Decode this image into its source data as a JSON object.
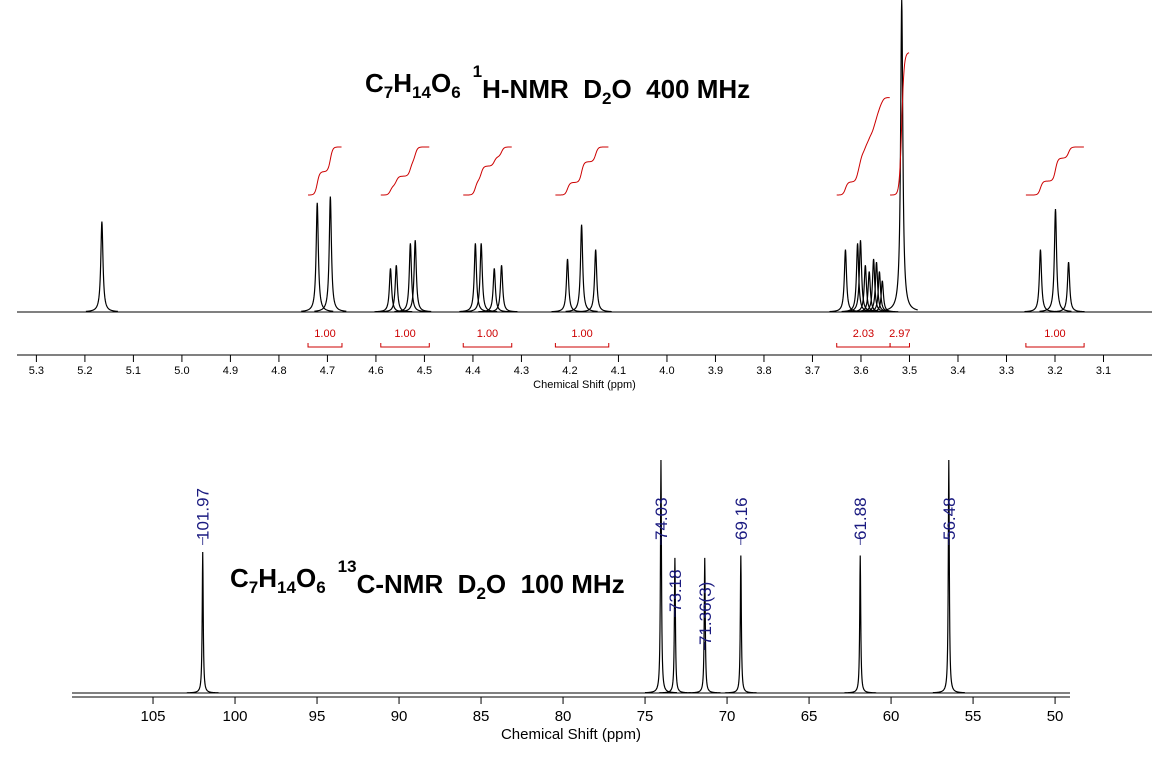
{
  "chart_data": [
    {
      "type": "nmr",
      "title": [
        {
          "text": "C"
        },
        {
          "text": "7",
          "shift": "sub"
        },
        {
          "text": "H"
        },
        {
          "text": "14",
          "shift": "sub"
        },
        {
          "text": "O"
        },
        {
          "text": "6",
          "shift": "sub"
        },
        {
          "text": "1",
          "shift": "sup"
        },
        {
          "text": "H-NMR  D"
        },
        {
          "text": "2",
          "shift": "sub"
        },
        {
          "text": "O  400 MHz"
        }
      ],
      "xlabel": "Chemical Shift (ppm)",
      "xlim": [
        5.34,
        3.0
      ],
      "xticks": [
        5.3,
        5.2,
        5.1,
        {
          "value": 5,
          "label": "5.0"
        },
        4.9,
        4.8,
        4.7,
        4.6,
        4.5,
        4.4,
        4.3,
        4.2,
        4.1,
        {
          "value": 4,
          "label": "4.0"
        },
        3.9,
        3.8,
        3.7,
        3.6,
        3.5,
        3.4,
        3.3,
        3.2,
        3.1
      ],
      "ylim": [
        0,
        100
      ],
      "color": "#000000",
      "peaks": {
        "x": [
          5.165,
          4.721,
          4.694,
          4.57,
          4.558,
          4.529,
          4.519,
          4.395,
          4.383,
          4.356,
          4.341,
          4.205,
          4.176,
          4.147,
          3.632,
          3.607,
          3.601,
          3.591,
          3.583,
          3.574,
          3.568,
          3.562,
          3.556,
          3.516,
          3.23,
          3.199,
          3.172
        ],
        "values": [
          29,
          35,
          37,
          14,
          15,
          22,
          23,
          22,
          22,
          14,
          15,
          17,
          28,
          20,
          20,
          22,
          23,
          15,
          13,
          17,
          16,
          13,
          10,
          100,
          20,
          33,
          16
        ]
      },
      "integrals": {
        "color": "#cc0000",
        "ranges": [
          [
            4.74,
            4.67
          ],
          [
            4.59,
            4.49
          ],
          [
            4.42,
            4.32
          ],
          [
            4.23,
            4.12
          ],
          [
            3.65,
            3.54
          ],
          [
            3.54,
            3.5
          ],
          [
            3.26,
            3.14
          ]
        ],
        "values": [
          1,
          1,
          1,
          1,
          2.03,
          2.97,
          1
        ],
        "value_labels": [
          "1.00",
          "1.00",
          "1.00",
          "1.00",
          "2.03",
          "2.97",
          "1.00"
        ]
      }
    },
    {
      "type": "nmr",
      "title": [
        {
          "text": "C"
        },
        {
          "text": "7",
          "shift": "sub"
        },
        {
          "text": "H"
        },
        {
          "text": "14",
          "shift": "sub"
        },
        {
          "text": "O"
        },
        {
          "text": "6",
          "shift": "sub"
        },
        {
          "text": "13",
          "shift": "sup"
        },
        {
          "text": "C-NMR  D"
        },
        {
          "text": "2",
          "shift": "sub"
        },
        {
          "text": "O  100 MHz"
        }
      ],
      "xlabel": "Chemical Shift (ppm)",
      "xlim": [
        109.94,
        49.09
      ],
      "xticks": [
        105,
        100,
        95,
        90,
        85,
        80,
        75,
        70,
        65,
        60,
        55,
        50
      ],
      "ylim": [
        0,
        100
      ],
      "color": "#000000",
      "label_color": "#1a1a80",
      "peaks": {
        "x": [
          101.97,
          74.03,
          73.18,
          71.36,
          69.16,
          61.88,
          56.48
        ],
        "x_labels": [
          "101.97",
          "74.03",
          "73.18",
          "71.36(3)",
          "69.16",
          "61.88",
          "56.48"
        ],
        "values": [
          60.5,
          100,
          58,
          58,
          59,
          59,
          100
        ]
      }
    }
  ]
}
